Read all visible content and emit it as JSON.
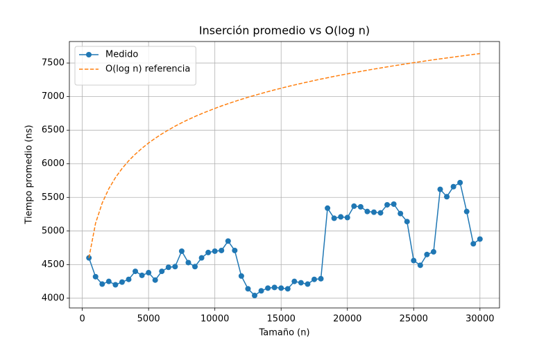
{
  "chart_data": {
    "type": "line",
    "title": "Inserción promedio vs O(log n)",
    "x_label": "Tamaño (n)",
    "y_label": "Tiempo promedio (ns)",
    "x": [
      500,
      1000,
      1500,
      2000,
      2500,
      3000,
      3500,
      4000,
      4500,
      5000,
      5500,
      6000,
      6500,
      7000,
      7500,
      8000,
      8500,
      9000,
      9500,
      10000,
      10500,
      11000,
      11500,
      12000,
      12500,
      13000,
      13500,
      14000,
      14500,
      15000,
      15500,
      16000,
      16500,
      17000,
      17500,
      18000,
      18500,
      19000,
      19500,
      20000,
      20500,
      21000,
      21500,
      22000,
      22500,
      23000,
      23500,
      24000,
      24500,
      25000,
      25500,
      26000,
      26500,
      27000,
      27500,
      28000,
      28500,
      29000,
      29500,
      30000
    ],
    "series": [
      {
        "name": "Medido",
        "color": "#1f77b4",
        "linestyle": "solid",
        "marker": "o",
        "values": [
          4600,
          4320,
          4210,
          4250,
          4200,
          4240,
          4280,
          4400,
          4340,
          4380,
          4270,
          4400,
          4460,
          4470,
          4700,
          4530,
          4470,
          4600,
          4680,
          4700,
          4710,
          4850,
          4710,
          4330,
          4140,
          4040,
          4110,
          4150,
          4160,
          4150,
          4140,
          4250,
          4230,
          4210,
          4280,
          4290,
          5340,
          5190,
          5210,
          5200,
          5370,
          5360,
          5290,
          5280,
          5270,
          5390,
          5400,
          5260,
          5140,
          4560,
          4490,
          4650,
          4690,
          5620,
          5510,
          5660,
          5720,
          5290,
          4810,
          4880
        ]
      },
      {
        "name": "O(log n) referencia",
        "color": "#ff7f0e",
        "linestyle": "dashed",
        "marker": null,
        "values": [
          4600,
          5115,
          5416,
          5629,
          5795,
          5930,
          6045,
          6144,
          6231,
          6310,
          6380,
          6445,
          6504,
          6560,
          6611,
          6659,
          6704,
          6746,
          6786,
          6824,
          6861,
          6895,
          6928,
          6960,
          6990,
          7019,
          7047,
          7074,
          7100,
          7125,
          7150,
          7173,
          7196,
          7218,
          7240,
          7261,
          7281,
          7301,
          7320,
          7339,
          7357,
          7375,
          7393,
          7410,
          7426,
          7443,
          7459,
          7474,
          7490,
          7505,
          7519,
          7534,
          7548,
          7562,
          7575,
          7589,
          7602,
          7615,
          7628,
          7640
        ]
      }
    ],
    "xlim": [
      -975,
      31475
    ],
    "ylim": [
      3855,
      7820
    ],
    "xticks": [
      0,
      5000,
      10000,
      15000,
      20000,
      25000,
      30000
    ],
    "yticks": [
      4000,
      4500,
      5000,
      5500,
      6000,
      6500,
      7000,
      7500
    ],
    "grid": true,
    "legend": "upper left"
  }
}
